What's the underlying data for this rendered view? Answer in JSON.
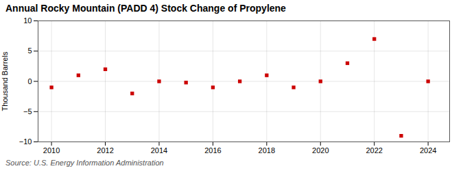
{
  "chart_data": {
    "type": "scatter",
    "title": "Annual Rocky Mountain (PADD 4) Stock Change of Propylene",
    "ylabel": "Thousand Barrels",
    "annotation": "Source: U.S. Energy Information Administration",
    "x": [
      2010,
      2011,
      2012,
      2013,
      2014,
      2015,
      2016,
      2017,
      2018,
      2019,
      2020,
      2021,
      2022,
      2023,
      2024
    ],
    "values": [
      -1.0,
      1.0,
      2.0,
      -2.0,
      0.0,
      -0.2,
      -1.0,
      0.0,
      1.0,
      -1.0,
      0.0,
      3.0,
      7.0,
      -9.0,
      0.0
    ],
    "color": "#cc0000",
    "marker": "square",
    "xlim": [
      2009.5,
      2024.8
    ],
    "ylim": [
      -10,
      10
    ],
    "yticks": [
      -10,
      -5,
      0,
      5,
      10
    ],
    "xticks": [
      2010,
      2012,
      2014,
      2016,
      2018,
      2020,
      2022,
      2024
    ],
    "grid": true
  }
}
